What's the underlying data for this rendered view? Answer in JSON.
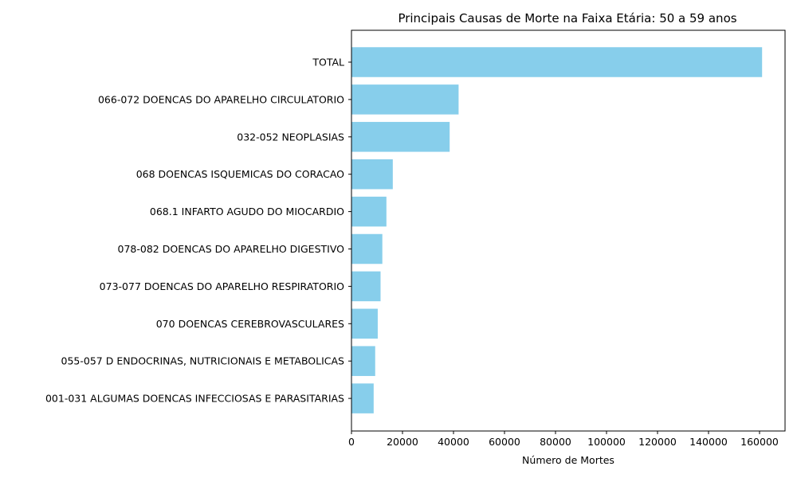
{
  "chart_data": {
    "type": "bar",
    "orientation": "horizontal",
    "title": "Principais Causas de Morte na Faixa Etária: 50 a 59 anos",
    "xlabel": "Número de Mortes",
    "ylabel": "",
    "xlim": [
      0,
      170000
    ],
    "x_ticks": [
      0,
      20000,
      40000,
      60000,
      80000,
      100000,
      120000,
      140000,
      160000
    ],
    "x_tick_labels": [
      "0",
      "20000",
      "40000",
      "60000",
      "80000",
      "100000",
      "120000",
      "140000",
      "160000"
    ],
    "grid": false,
    "bar_color": "#87CEEB",
    "categories": [
      "TOTAL",
      "066-072 DOENCAS DO APARELHO CIRCULATORIO",
      "032-052 NEOPLASIAS",
      "068 DOENCAS ISQUEMICAS DO CORACAO",
      "068.1 INFARTO AGUDO DO MIOCARDIO",
      "078-082 DOENCAS DO APARELHO DIGESTIVO",
      "073-077 DOENCAS DO APARELHO RESPIRATORIO",
      "070 DOENCAS CEREBROVASCULARES",
      "055-057 D ENDOCRINAS, NUTRICIONAIS E METABOLICAS",
      "001-031 ALGUMAS DOENCAS INFECCIOSAS E PARASITARIAS"
    ],
    "values": [
      161000,
      42000,
      38500,
      16200,
      13700,
      12100,
      11400,
      10300,
      9300,
      8700
    ]
  }
}
